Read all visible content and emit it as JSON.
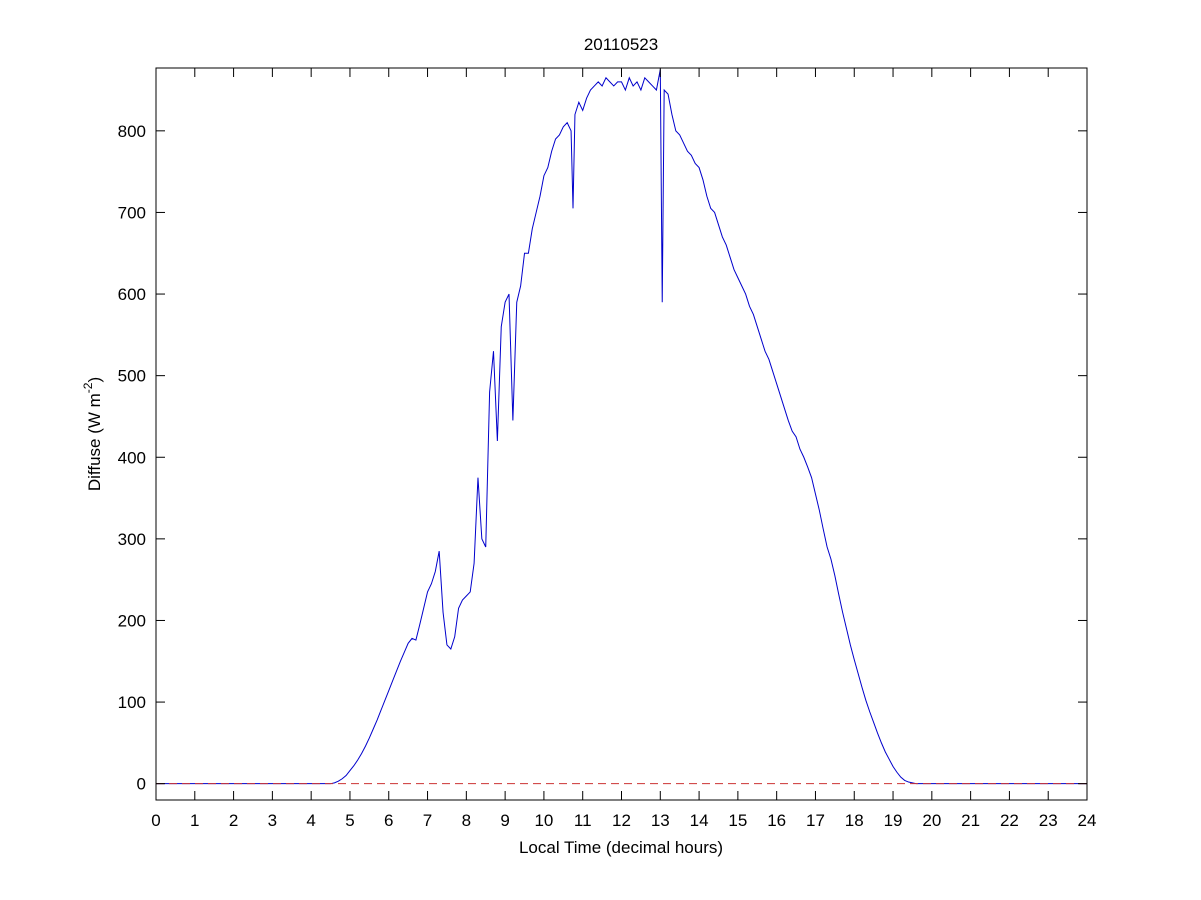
{
  "chart_data": {
    "type": "line",
    "title": "20110523",
    "xlabel": "Local Time (decimal hours)",
    "ylabel": {
      "text": "Diffuse (W m",
      "superscript": "-2",
      "suffix": ")"
    },
    "xlim": [
      0,
      24
    ],
    "xticks": [
      0,
      1,
      2,
      3,
      4,
      5,
      6,
      7,
      8,
      9,
      10,
      11,
      12,
      13,
      14,
      15,
      16,
      17,
      18,
      19,
      20,
      21,
      22,
      23,
      24
    ],
    "ylim": [
      -20,
      877
    ],
    "yticks": [
      0,
      100,
      200,
      300,
      400,
      500,
      600,
      700,
      800
    ],
    "series": [
      {
        "color": "#0000cc",
        "dash": false,
        "x": [
          0,
          4.5,
          4.6,
          4.7,
          4.8,
          4.9,
          5.0,
          5.1,
          5.2,
          5.3,
          5.4,
          5.5,
          5.6,
          5.7,
          5.8,
          5.9,
          6.0,
          6.1,
          6.2,
          6.3,
          6.4,
          6.5,
          6.6,
          6.7,
          6.8,
          6.9,
          7.0,
          7.1,
          7.2,
          7.3,
          7.4,
          7.5,
          7.6,
          7.7,
          7.8,
          7.9,
          8.0,
          8.1,
          8.2,
          8.3,
          8.4,
          8.5,
          8.6,
          8.7,
          8.8,
          8.9,
          9.0,
          9.1,
          9.2,
          9.3,
          9.4,
          9.5,
          9.6,
          9.7,
          9.8,
          9.9,
          10.0,
          10.1,
          10.2,
          10.3,
          10.4,
          10.5,
          10.6,
          10.7,
          10.75,
          10.8,
          10.9,
          11.0,
          11.1,
          11.2,
          11.3,
          11.4,
          11.5,
          11.6,
          11.7,
          11.8,
          11.9,
          12.0,
          12.1,
          12.2,
          12.3,
          12.4,
          12.5,
          12.6,
          12.7,
          12.8,
          12.9,
          13.0,
          13.05,
          13.1,
          13.2,
          13.3,
          13.4,
          13.5,
          13.6,
          13.7,
          13.8,
          13.9,
          14.0,
          14.1,
          14.2,
          14.3,
          14.4,
          14.5,
          14.6,
          14.7,
          14.8,
          14.9,
          15.0,
          15.1,
          15.2,
          15.3,
          15.4,
          15.5,
          15.6,
          15.7,
          15.8,
          15.9,
          16.0,
          16.1,
          16.2,
          16.3,
          16.4,
          16.5,
          16.6,
          16.7,
          16.8,
          16.9,
          17.0,
          17.1,
          17.2,
          17.3,
          17.4,
          17.5,
          17.6,
          17.7,
          17.8,
          17.9,
          18.0,
          18.1,
          18.2,
          18.3,
          18.4,
          18.5,
          18.6,
          18.7,
          18.8,
          18.9,
          19.0,
          19.1,
          19.2,
          19.3,
          19.4,
          19.5,
          19.6,
          24
        ],
        "values": [
          0,
          0,
          1,
          3,
          6,
          10,
          16,
          22,
          29,
          37,
          46,
          56,
          67,
          78,
          90,
          102,
          114,
          126,
          138,
          150,
          161,
          172,
          178,
          176,
          195,
          215,
          235,
          245,
          260,
          285,
          210,
          170,
          165,
          180,
          215,
          225,
          230,
          235,
          270,
          375,
          300,
          290,
          480,
          530,
          420,
          560,
          590,
          600,
          445,
          590,
          610,
          650,
          650,
          680,
          700,
          720,
          745,
          755,
          775,
          790,
          795,
          805,
          810,
          800,
          705,
          820,
          835,
          825,
          840,
          850,
          855,
          860,
          855,
          865,
          860,
          855,
          860,
          860,
          850,
          865,
          855,
          860,
          850,
          865,
          860,
          855,
          850,
          875,
          590,
          850,
          845,
          820,
          800,
          795,
          785,
          775,
          770,
          760,
          755,
          740,
          720,
          705,
          700,
          685,
          670,
          660,
          645,
          630,
          620,
          610,
          600,
          585,
          575,
          560,
          545,
          530,
          520,
          505,
          490,
          475,
          460,
          445,
          432,
          425,
          410,
          400,
          388,
          375,
          355,
          335,
          312,
          290,
          275,
          255,
          232,
          210,
          190,
          170,
          152,
          135,
          118,
          102,
          88,
          75,
          62,
          50,
          39,
          30,
          21,
          14,
          8,
          4,
          2,
          1,
          0,
          0
        ]
      },
      {
        "color": "#cc3333",
        "dash": true,
        "x": [
          0,
          24
        ],
        "values": [
          0,
          0
        ]
      }
    ]
  }
}
